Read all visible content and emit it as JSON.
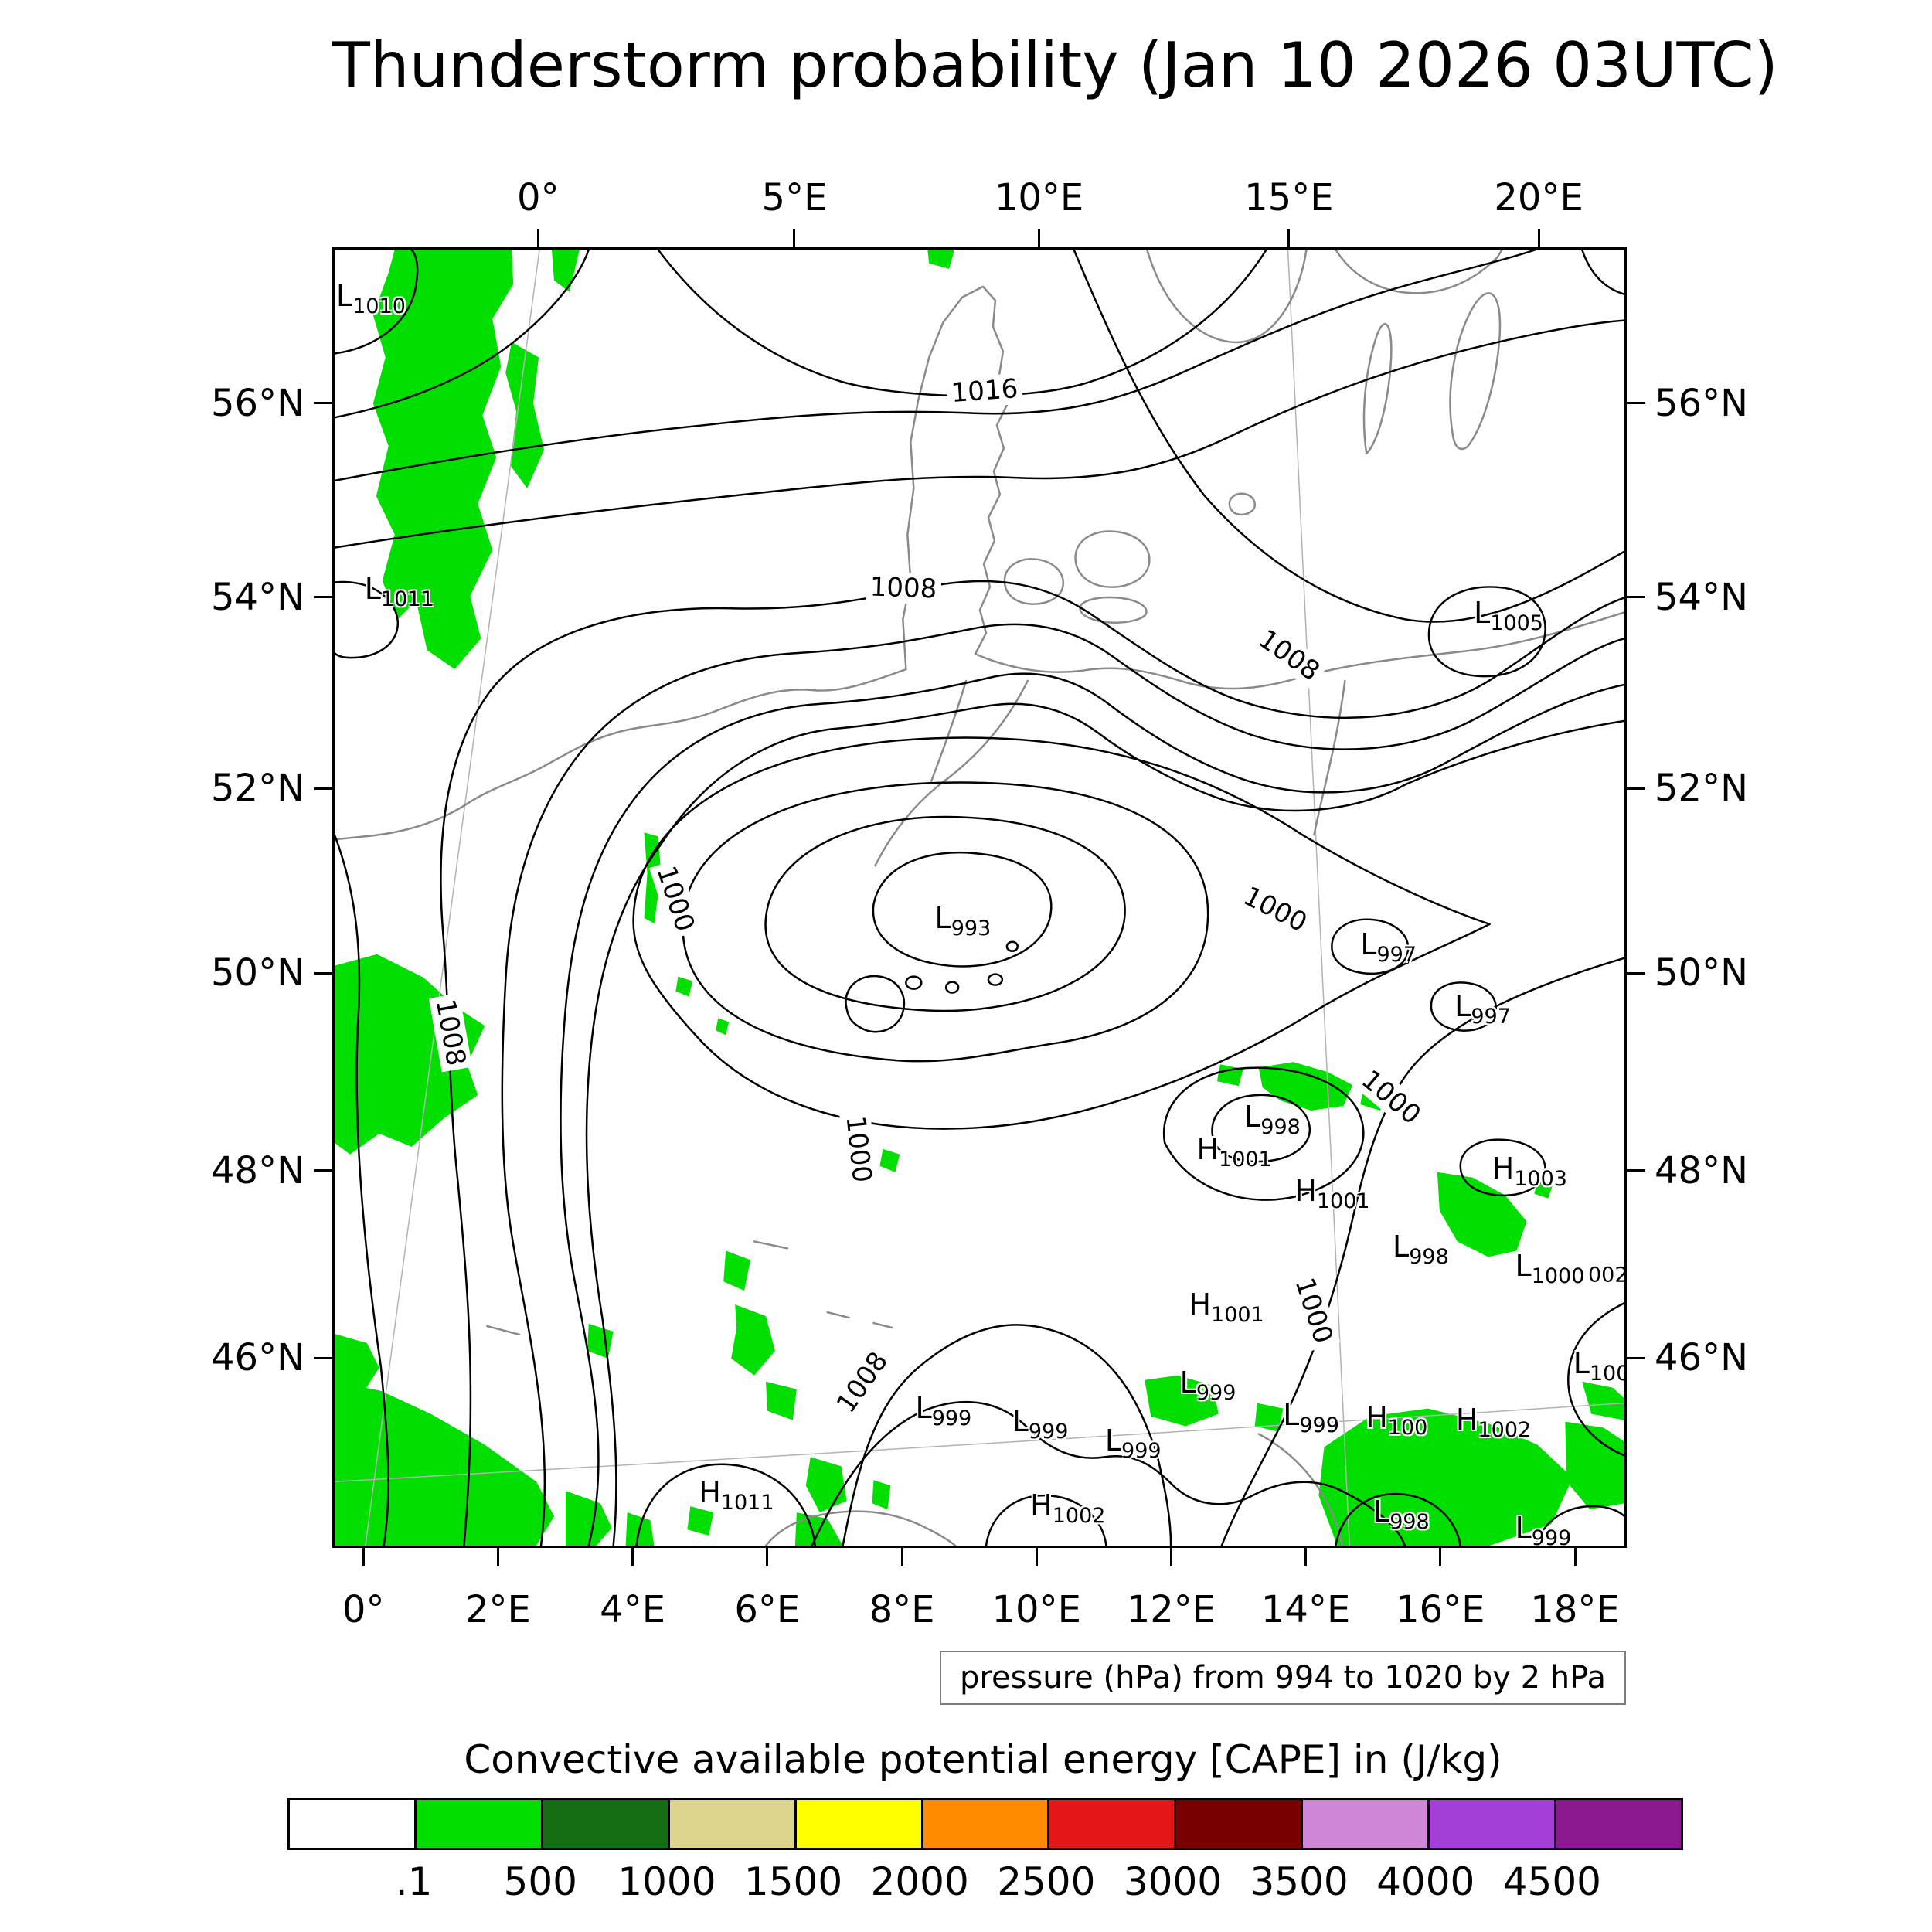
{
  "title": "Thunderstorm probability (Jan 10 2026 03UTC)",
  "chart_data": {
    "type": "heatmap",
    "subtype": "pressure-isobar-contour-map-with-cape-shading",
    "title": "Thunderstorm probability (Jan 10 2026 03UTC)",
    "contour_note": "pressure (hPa) from 994 to 1020 by 2 hPa",
    "contour_variable": "pressure",
    "contour_unit": "hPa",
    "contour_min": 994,
    "contour_max": 1020,
    "contour_step": 2,
    "axes": {
      "top": [
        {
          "t": "0°",
          "p": 15.9
        },
        {
          "t": "5°E",
          "p": 35.7
        },
        {
          "t": "10°E",
          "p": 54.6
        },
        {
          "t": "15°E",
          "p": 73.9
        },
        {
          "t": "20°E",
          "p": 93.2
        }
      ],
      "bottom": [
        {
          "t": "0°",
          "p": 2.4
        },
        {
          "t": "2°E",
          "p": 12.8
        },
        {
          "t": "4°E",
          "p": 23.2
        },
        {
          "t": "6°E",
          "p": 33.6
        },
        {
          "t": "8°E",
          "p": 44.0
        },
        {
          "t": "10°E",
          "p": 54.4
        },
        {
          "t": "12°E",
          "p": 64.8
        },
        {
          "t": "14°E",
          "p": 75.2
        },
        {
          "t": "16°E",
          "p": 85.6
        },
        {
          "t": "18°E",
          "p": 96.0
        }
      ],
      "left": [
        {
          "t": "56°N",
          "p": 12.0
        },
        {
          "t": "54°N",
          "p": 26.9
        },
        {
          "t": "52°N",
          "p": 41.6
        },
        {
          "t": "50°N",
          "p": 55.8
        },
        {
          "t": "48°N",
          "p": 71.0
        },
        {
          "t": "46°N",
          "p": 85.4
        }
      ],
      "right": [
        {
          "t": "56°N",
          "p": 12.0
        },
        {
          "t": "54°N",
          "p": 26.9
        },
        {
          "t": "52°N",
          "p": 41.6
        },
        {
          "t": "50°N",
          "p": 55.8
        },
        {
          "t": "48°N",
          "p": 71.0
        },
        {
          "t": "46°N",
          "p": 85.4
        }
      ]
    },
    "isobar_labels": [
      {
        "t": "1016",
        "x": 50.4,
        "y": 10.9,
        "r": -4
      },
      {
        "t": "1008",
        "x": 44.1,
        "y": 26.1,
        "r": 2
      },
      {
        "t": "1008",
        "x": 74.0,
        "y": 31.3,
        "r": 35
      },
      {
        "t": "1000",
        "x": 26.4,
        "y": 50.1,
        "r": 72
      },
      {
        "t": "1000",
        "x": 72.9,
        "y": 50.9,
        "r": 27
      },
      {
        "t": "1008",
        "x": 9.0,
        "y": 60.4,
        "r": 80
      },
      {
        "t": "1000",
        "x": 81.9,
        "y": 65.4,
        "r": 40
      },
      {
        "t": "1000",
        "x": 40.6,
        "y": 69.4,
        "r": 84
      },
      {
        "t": "1000",
        "x": 75.9,
        "y": 81.9,
        "r": 72
      },
      {
        "t": "1008",
        "x": 40.9,
        "y": 87.4,
        "r": -55
      }
    ],
    "pressure_centers": [
      {
        "s": "L",
        "v": "1010",
        "x": 1.2,
        "y": 3.6
      },
      {
        "s": "L",
        "v": "1011",
        "x": 3.4,
        "y": 26.2
      },
      {
        "s": "L",
        "v": "1005",
        "x": 89.4,
        "y": 28.0
      },
      {
        "s": "L",
        "v": "993",
        "x": 47.4,
        "y": 51.6
      },
      {
        "s": "L",
        "v": "997",
        "x": 80.4,
        "y": 53.6
      },
      {
        "s": "L",
        "v": "997",
        "x": 87.7,
        "y": 58.4
      },
      {
        "s": "L",
        "v": "998",
        "x": 71.4,
        "y": 66.9
      },
      {
        "s": "H",
        "v": "1001",
        "x": 68.0,
        "y": 69.4
      },
      {
        "s": "H",
        "v": "1001",
        "x": 75.6,
        "y": 72.6
      },
      {
        "s": "H",
        "v": "1003",
        "x": 90.9,
        "y": 70.9
      },
      {
        "s": "L",
        "v": "998",
        "x": 82.9,
        "y": 76.9
      },
      {
        "s": "L",
        "v": "1000",
        "x": 92.6,
        "y": 78.4
      },
      {
        "s": "",
        "v": "002",
        "x": 97.8,
        "y": 78.6
      },
      {
        "s": "H",
        "v": "1001",
        "x": 67.4,
        "y": 81.4
      },
      {
        "s": "L",
        "v": "100",
        "x": 96.9,
        "y": 85.9
      },
      {
        "s": "L",
        "v": "999",
        "x": 66.4,
        "y": 87.4
      },
      {
        "s": "L",
        "v": "999",
        "x": 45.9,
        "y": 89.4
      },
      {
        "s": "L",
        "v": "999",
        "x": 53.4,
        "y": 90.4
      },
      {
        "s": "L",
        "v": "999",
        "x": 60.6,
        "y": 91.9
      },
      {
        "s": "L",
        "v": "999",
        "x": 74.4,
        "y": 89.9
      },
      {
        "s": "H",
        "v": "100",
        "x": 80.9,
        "y": 90.1
      },
      {
        "s": "H",
        "v": "1002",
        "x": 88.1,
        "y": 90.3
      },
      {
        "s": "H",
        "v": "1011",
        "x": 29.4,
        "y": 95.9
      },
      {
        "s": "H",
        "v": "1002",
        "x": 55.1,
        "y": 96.9
      },
      {
        "s": "L",
        "v": "998",
        "x": 81.4,
        "y": 97.4
      },
      {
        "s": "L",
        "v": "999",
        "x": 92.4,
        "y": 98.6
      }
    ],
    "cape_colorbar": {
      "title": "Convective available potential energy [CAPE] in (J/kg)",
      "labels": [
        ".1",
        "500",
        "1000",
        "1500",
        "2000",
        "2500",
        "3000",
        "3500",
        "4000",
        "4500"
      ],
      "colors": [
        "#ffffff",
        "#00df00",
        "#146e14",
        "#ddd58d",
        "#ffff00",
        "#ff8c00",
        "#e31717",
        "#780000",
        "#d086d6",
        "#a33fd6",
        "#8b1990"
      ],
      "shade_color_on_map": "#00df00"
    }
  }
}
